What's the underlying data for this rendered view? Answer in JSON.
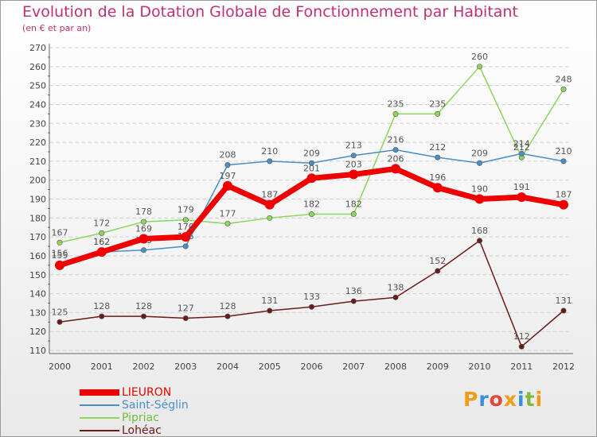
{
  "header": {
    "title": "Evolution de la Dotation Globale de Fonctionnement par Habitant",
    "subtitle": "(en € et par an)"
  },
  "brand": {
    "letters": [
      "P",
      "r",
      "o",
      "x",
      "i",
      "t",
      "i"
    ],
    "colors": [
      "#f39c12",
      "#3a8fd8",
      "#e2483a",
      "#f39c12",
      "#3a8fd8",
      "#7fba3c",
      "#f39c12"
    ]
  },
  "chart_data": {
    "type": "line",
    "title": "Evolution de la Dotation Globale de Fonctionnement par Habitant",
    "subtitle": "(en € et par an)",
    "x": [
      "2000",
      "2001",
      "2002",
      "2003",
      "2004",
      "2005",
      "2006",
      "2007",
      "2008",
      "2009",
      "2010",
      "2011",
      "2012"
    ],
    "ylim": [
      110,
      270
    ],
    "yticks": [
      110,
      120,
      130,
      140,
      150,
      160,
      170,
      180,
      190,
      200,
      210,
      220,
      230,
      240,
      250,
      260,
      270
    ],
    "grid": "horizontal",
    "legend": "bottom-left",
    "series": [
      {
        "name": "Lohéac",
        "color": "#6b1a1a",
        "values": [
          125,
          128,
          128,
          127,
          128,
          131,
          133,
          136,
          138,
          152,
          168,
          112,
          131
        ],
        "labels": [
          "125",
          "128",
          "128",
          "127",
          "128",
          "131",
          "133",
          "136",
          "138",
          "152",
          "168",
          "112",
          "131"
        ]
      },
      {
        "name": "Pipriac",
        "color": "#8cd65c",
        "values": [
          167,
          172,
          178,
          179,
          177,
          180,
          182,
          182,
          235,
          235,
          260,
          212,
          248
        ],
        "labels": [
          "167",
          "172",
          "178",
          "179",
          "177",
          "",
          "182",
          "182",
          "235",
          "235",
          "260",
          "212",
          "248"
        ]
      },
      {
        "name": "Saint-Séglin",
        "color": "#4a90c8",
        "values": [
          156,
          162,
          163,
          165,
          208,
          210,
          209,
          213,
          216,
          212,
          209,
          214,
          210
        ],
        "labels": [
          "156",
          "162",
          "163",
          "165",
          "208",
          "210",
          "209",
          "213",
          "216",
          "212",
          "209",
          "214",
          "210"
        ]
      },
      {
        "name": "LIEURON",
        "color": "#ee0000",
        "values": [
          155,
          162,
          169,
          170,
          197,
          187,
          201,
          203,
          206,
          196,
          190,
          191,
          187
        ],
        "labels": [
          "155",
          "162",
          "169",
          "170",
          "197",
          "187",
          "201",
          "203",
          "206",
          "196",
          "190",
          "191",
          "187"
        ]
      }
    ]
  },
  "legend": {
    "items": [
      {
        "label": "LIEURON",
        "color": "#ee0000"
      },
      {
        "label": "Saint-Séglin",
        "color": "#4a90c8"
      },
      {
        "label": "Pipriac",
        "color": "#8cd65c"
      },
      {
        "label": "Lohéac",
        "color": "#6b1a1a"
      }
    ]
  }
}
